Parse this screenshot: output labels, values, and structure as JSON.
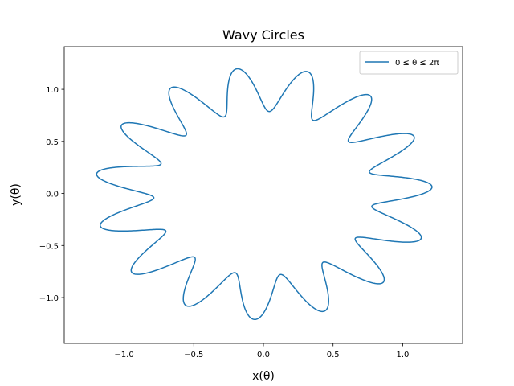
{
  "chart_data": {
    "type": "line",
    "title": "Wavy Circles",
    "xlabel": "x(θ)",
    "ylabel": "y(θ)",
    "xlim": [
      -1.43,
      1.43
    ],
    "ylim": [
      -1.44,
      1.41
    ],
    "xticks": [
      -1.0,
      -0.5,
      0.0,
      0.5,
      1.0
    ],
    "xtick_labels": [
      "−1.0",
      "−0.5",
      "0.0",
      "0.5",
      "1.0"
    ],
    "yticks": [
      -1.0,
      -0.5,
      0.0,
      0.5,
      1.0
    ],
    "ytick_labels": [
      "−1.0",
      "−0.5",
      "0.0",
      "0.5",
      "1.0"
    ],
    "grid": false,
    "legend_position": "top-right",
    "series": [
      {
        "name": "0 ≤ θ ≤ 2π",
        "color": "#1f77b4",
        "curve": "r(θ) = 1 + 0.15·cos(15θ) + 0.15·sin(15θ), x = r·cos θ, y = r·sin θ, θ from 0 to 2π",
        "base_radius": 1.0,
        "wave_amplitude": 0.15,
        "wave_frequency": 15,
        "theta_range": [
          0,
          6.283185307179586
        ]
      }
    ]
  }
}
